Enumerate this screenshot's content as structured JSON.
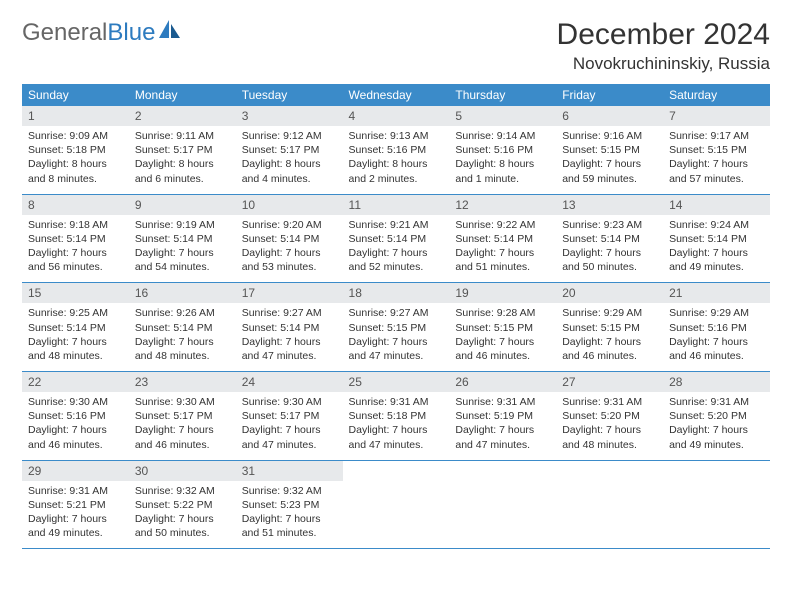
{
  "logo": {
    "general": "General",
    "blue": "Blue"
  },
  "title": "December 2024",
  "location": "Novokruchininskiy, Russia",
  "colors": {
    "header_bg": "#3b8bc9",
    "header_text": "#ffffff",
    "daynum_bg": "#e7e9eb",
    "row_border": "#3b8bc9",
    "logo_blue": "#2d7bbf",
    "logo_gray": "#666666",
    "body_text": "#333333",
    "background": "#ffffff"
  },
  "day_headers": [
    "Sunday",
    "Monday",
    "Tuesday",
    "Wednesday",
    "Thursday",
    "Friday",
    "Saturday"
  ],
  "weeks": [
    [
      {
        "n": "1",
        "sr": "9:09 AM",
        "ss": "5:18 PM",
        "dl": "8 hours and 8 minutes."
      },
      {
        "n": "2",
        "sr": "9:11 AM",
        "ss": "5:17 PM",
        "dl": "8 hours and 6 minutes."
      },
      {
        "n": "3",
        "sr": "9:12 AM",
        "ss": "5:17 PM",
        "dl": "8 hours and 4 minutes."
      },
      {
        "n": "4",
        "sr": "9:13 AM",
        "ss": "5:16 PM",
        "dl": "8 hours and 2 minutes."
      },
      {
        "n": "5",
        "sr": "9:14 AM",
        "ss": "5:16 PM",
        "dl": "8 hours and 1 minute."
      },
      {
        "n": "6",
        "sr": "9:16 AM",
        "ss": "5:15 PM",
        "dl": "7 hours and 59 minutes."
      },
      {
        "n": "7",
        "sr": "9:17 AM",
        "ss": "5:15 PM",
        "dl": "7 hours and 57 minutes."
      }
    ],
    [
      {
        "n": "8",
        "sr": "9:18 AM",
        "ss": "5:14 PM",
        "dl": "7 hours and 56 minutes."
      },
      {
        "n": "9",
        "sr": "9:19 AM",
        "ss": "5:14 PM",
        "dl": "7 hours and 54 minutes."
      },
      {
        "n": "10",
        "sr": "9:20 AM",
        "ss": "5:14 PM",
        "dl": "7 hours and 53 minutes."
      },
      {
        "n": "11",
        "sr": "9:21 AM",
        "ss": "5:14 PM",
        "dl": "7 hours and 52 minutes."
      },
      {
        "n": "12",
        "sr": "9:22 AM",
        "ss": "5:14 PM",
        "dl": "7 hours and 51 minutes."
      },
      {
        "n": "13",
        "sr": "9:23 AM",
        "ss": "5:14 PM",
        "dl": "7 hours and 50 minutes."
      },
      {
        "n": "14",
        "sr": "9:24 AM",
        "ss": "5:14 PM",
        "dl": "7 hours and 49 minutes."
      }
    ],
    [
      {
        "n": "15",
        "sr": "9:25 AM",
        "ss": "5:14 PM",
        "dl": "7 hours and 48 minutes."
      },
      {
        "n": "16",
        "sr": "9:26 AM",
        "ss": "5:14 PM",
        "dl": "7 hours and 48 minutes."
      },
      {
        "n": "17",
        "sr": "9:27 AM",
        "ss": "5:14 PM",
        "dl": "7 hours and 47 minutes."
      },
      {
        "n": "18",
        "sr": "9:27 AM",
        "ss": "5:15 PM",
        "dl": "7 hours and 47 minutes."
      },
      {
        "n": "19",
        "sr": "9:28 AM",
        "ss": "5:15 PM",
        "dl": "7 hours and 46 minutes."
      },
      {
        "n": "20",
        "sr": "9:29 AM",
        "ss": "5:15 PM",
        "dl": "7 hours and 46 minutes."
      },
      {
        "n": "21",
        "sr": "9:29 AM",
        "ss": "5:16 PM",
        "dl": "7 hours and 46 minutes."
      }
    ],
    [
      {
        "n": "22",
        "sr": "9:30 AM",
        "ss": "5:16 PM",
        "dl": "7 hours and 46 minutes."
      },
      {
        "n": "23",
        "sr": "9:30 AM",
        "ss": "5:17 PM",
        "dl": "7 hours and 46 minutes."
      },
      {
        "n": "24",
        "sr": "9:30 AM",
        "ss": "5:17 PM",
        "dl": "7 hours and 47 minutes."
      },
      {
        "n": "25",
        "sr": "9:31 AM",
        "ss": "5:18 PM",
        "dl": "7 hours and 47 minutes."
      },
      {
        "n": "26",
        "sr": "9:31 AM",
        "ss": "5:19 PM",
        "dl": "7 hours and 47 minutes."
      },
      {
        "n": "27",
        "sr": "9:31 AM",
        "ss": "5:20 PM",
        "dl": "7 hours and 48 minutes."
      },
      {
        "n": "28",
        "sr": "9:31 AM",
        "ss": "5:20 PM",
        "dl": "7 hours and 49 minutes."
      }
    ],
    [
      {
        "n": "29",
        "sr": "9:31 AM",
        "ss": "5:21 PM",
        "dl": "7 hours and 49 minutes."
      },
      {
        "n": "30",
        "sr": "9:32 AM",
        "ss": "5:22 PM",
        "dl": "7 hours and 50 minutes."
      },
      {
        "n": "31",
        "sr": "9:32 AM",
        "ss": "5:23 PM",
        "dl": "7 hours and 51 minutes."
      },
      {
        "empty": true
      },
      {
        "empty": true
      },
      {
        "empty": true
      },
      {
        "empty": true
      }
    ]
  ],
  "labels": {
    "sunrise": "Sunrise:",
    "sunset": "Sunset:",
    "daylight": "Daylight:"
  }
}
